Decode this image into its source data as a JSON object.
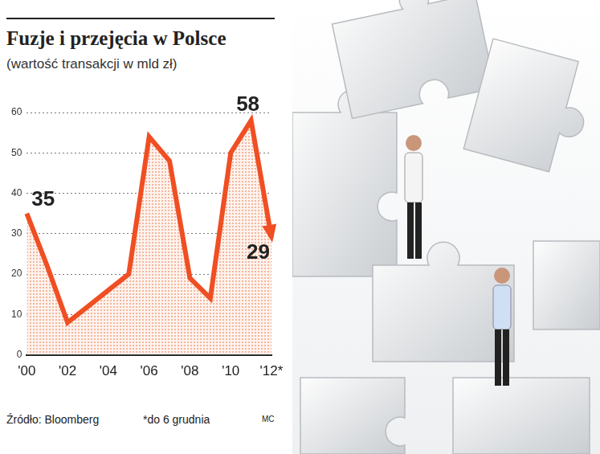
{
  "chart_data": {
    "type": "line",
    "title": "Fuzje i przejęcia w Polsce",
    "subtitle": "(wartość transakcji w mld zł)",
    "source": "Źródło: Bloomberg",
    "note": "*do 6 grudnia",
    "credit": "MC",
    "categories": [
      "'00",
      null,
      "'02",
      null,
      "'04",
      null,
      "'06",
      null,
      "'08",
      null,
      "'10",
      null,
      "'12*"
    ],
    "values": [
      35,
      22,
      8,
      12,
      16,
      20,
      54,
      48,
      19,
      14,
      50,
      58,
      29
    ],
    "value_labels": [
      "35",
      null,
      null,
      null,
      null,
      null,
      null,
      null,
      null,
      null,
      null,
      "58",
      "29"
    ],
    "data_labels": true,
    "color": "#f04e23",
    "ylim": [
      0,
      60
    ],
    "yticks": [
      0,
      10,
      20,
      30,
      40,
      50,
      60
    ],
    "grid": true
  }
}
